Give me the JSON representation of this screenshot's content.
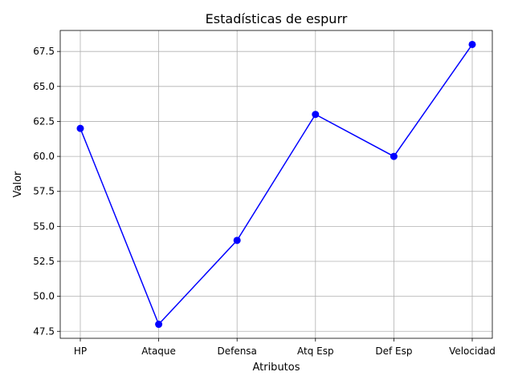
{
  "chart_data": {
    "type": "line",
    "title": "Estadísticas de espurr",
    "xlabel": "Atributos",
    "ylabel": "Valor",
    "categories": [
      "HP",
      "Ataque",
      "Defensa",
      "Atq Esp",
      "Def Esp",
      "Velocidad"
    ],
    "series": [
      {
        "values": [
          62,
          48,
          54,
          63,
          60,
          68
        ],
        "color": "#0000ff",
        "marker": "circle"
      }
    ],
    "ylim": [
      47.0,
      69.0
    ],
    "yticks": [
      "47.5",
      "50.0",
      "52.5",
      "55.0",
      "57.5",
      "60.0",
      "62.5",
      "65.0",
      "67.5"
    ],
    "grid": true,
    "legend": "none"
  }
}
